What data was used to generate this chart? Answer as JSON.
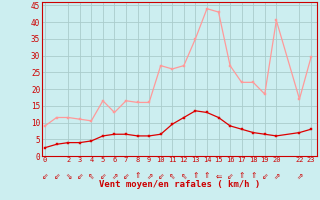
{
  "hours": [
    0,
    1,
    2,
    3,
    4,
    5,
    6,
    7,
    8,
    9,
    10,
    11,
    12,
    13,
    14,
    15,
    16,
    17,
    18,
    19,
    20,
    22,
    23
  ],
  "vent_moyen": [
    2.5,
    3.5,
    4,
    4,
    4.5,
    6,
    6.5,
    6.5,
    6,
    6,
    6.5,
    9.5,
    11.5,
    13.5,
    13,
    11.5,
    9,
    8,
    7,
    6.5,
    6,
    7,
    8
  ],
  "rafales": [
    9,
    11.5,
    11.5,
    11,
    10.5,
    16.5,
    13,
    16.5,
    16,
    16,
    27,
    26,
    27,
    35,
    44,
    43,
    27,
    22,
    22,
    18.5,
    40.5,
    17,
    29.5
  ],
  "bg_color": "#cceef0",
  "grid_color": "#aacccc",
  "line_moyen_color": "#dd0000",
  "line_rafales_color": "#ff9999",
  "xlabel": "Vent moyen/en rafales ( km/h )",
  "ylim": [
    0,
    46
  ],
  "yticks": [
    0,
    5,
    10,
    15,
    20,
    25,
    30,
    35,
    40,
    45
  ],
  "xticks": [
    0,
    2,
    3,
    4,
    5,
    6,
    7,
    8,
    9,
    10,
    11,
    12,
    13,
    14,
    15,
    16,
    17,
    18,
    19,
    20,
    22,
    23
  ],
  "label_color": "#cc0000",
  "wind_symbols": [
    "⇙",
    "⇙",
    "⇘",
    "⇙",
    "⇖",
    "⇙",
    "⇗",
    "⇙",
    "⇑",
    "⇗",
    "⇙",
    "⇖",
    "⇖",
    "⇑",
    "⇑",
    "⇐",
    "⇙",
    "⇑",
    "⇑",
    "⇙",
    "⇗",
    "⇗"
  ]
}
